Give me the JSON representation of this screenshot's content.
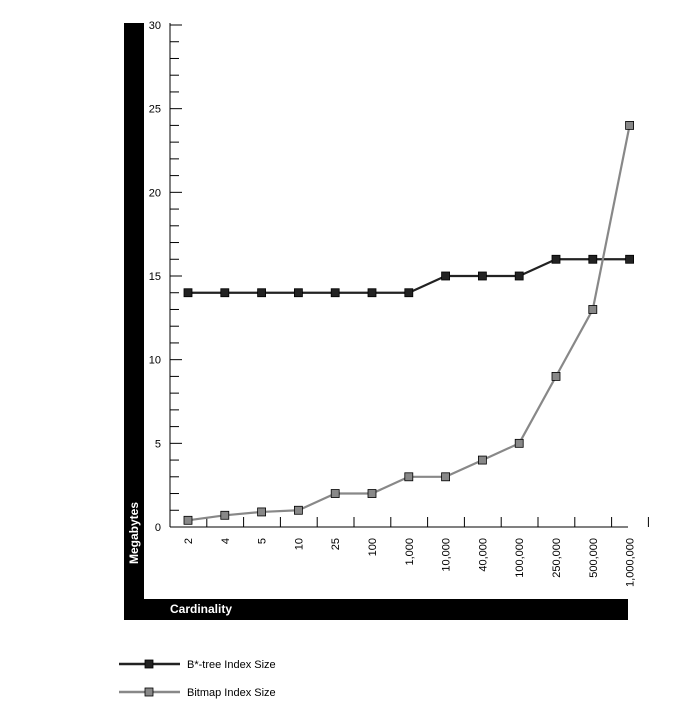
{
  "chart_data": {
    "type": "line",
    "categories": [
      "2",
      "4",
      "5",
      "10",
      "25",
      "100",
      "1,000",
      "10,000",
      "40,000",
      "100,000",
      "250,000",
      "500,000",
      "1,000,000"
    ],
    "series": [
      {
        "name": "B*-tree Index Size",
        "values": [
          14,
          14,
          14,
          14,
          14,
          14,
          14,
          15,
          15,
          15,
          16,
          16,
          16
        ],
        "color": "#222222"
      },
      {
        "name": "Bitmap Index Size",
        "values": [
          0.4,
          0.7,
          0.9,
          1.0,
          2.0,
          2.0,
          3.0,
          3.0,
          4.0,
          5.0,
          9.0,
          13.0,
          24.0
        ],
        "color": "#888888"
      }
    ],
    "xlabel": "Cardinality",
    "ylabel": "Megabytes",
    "ylim": [
      0,
      30
    ],
    "yticks": [
      "0",
      "5",
      "10",
      "15",
      "20",
      "25",
      "30"
    ],
    "grid": false,
    "legend": "bottom-left"
  }
}
